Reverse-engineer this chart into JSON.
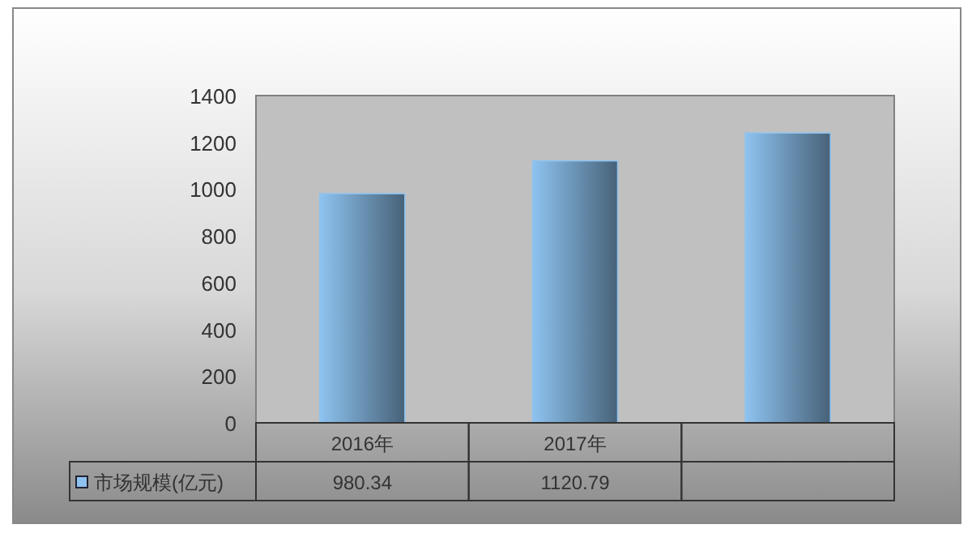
{
  "chart_data": {
    "type": "bar",
    "categories": [
      "2016年",
      "2017年",
      null
    ],
    "series": [
      {
        "name": "市场规模(亿元)",
        "color": "#8ec3f0",
        "values": [
          980.34,
          1120.79,
          1240
        ],
        "value_labels": [
          "980.34",
          "1120.79",
          null
        ]
      }
    ],
    "ylim": [
      0,
      1400
    ],
    "yticks": [
      0,
      200,
      400,
      600,
      800,
      1000,
      1200,
      1400
    ],
    "grid": false,
    "legend": "bottom"
  }
}
